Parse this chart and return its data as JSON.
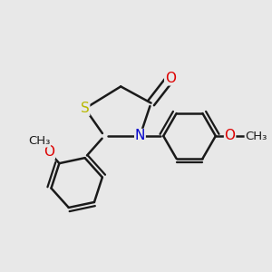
{
  "background_color": "#e8e8e8",
  "bond_color": "#1a1a1a",
  "atom_colors": {
    "S": "#b8b800",
    "N": "#0000cc",
    "O": "#dd0000",
    "C": "#1a1a1a"
  },
  "bond_width": 1.8,
  "font_size_atoms": 11,
  "font_size_methoxy": 9.5
}
